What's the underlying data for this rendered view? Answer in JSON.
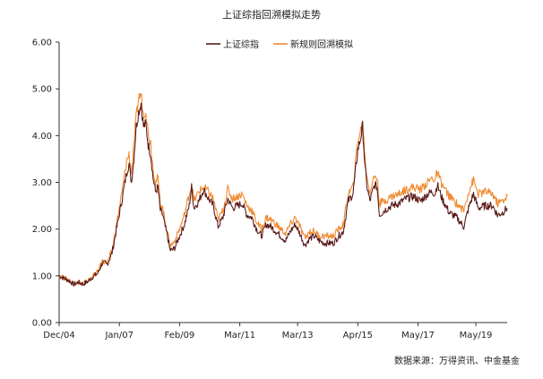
{
  "chart_data": {
    "type": "line",
    "title": "上证综指回溯模拟走势",
    "xlabel": "",
    "ylabel": "",
    "x_tick_labels": [
      "Dec/04",
      "Jan/07",
      "Feb/09",
      "Mar/11",
      "Mar/13",
      "Apr/15",
      "May/17",
      "May/19"
    ],
    "y_tick_labels": [
      "0.00",
      "1.00",
      "2.00",
      "3.00",
      "4.00",
      "5.00",
      "6.00"
    ],
    "ylim": [
      0,
      6
    ],
    "xlim": [
      "2004-12",
      "2020-06"
    ],
    "grid": false,
    "legend_position": "top-center",
    "source": "数据来源：万得资讯、中金基金",
    "series": [
      {
        "name": "上证综指",
        "color": "#5b1a1a",
        "points": [
          [
            "2004-12",
            1.0
          ],
          [
            "2005-02",
            0.95
          ],
          [
            "2005-04",
            0.9
          ],
          [
            "2005-06",
            0.82
          ],
          [
            "2005-08",
            0.86
          ],
          [
            "2005-10",
            0.82
          ],
          [
            "2005-12",
            0.88
          ],
          [
            "2006-02",
            0.98
          ],
          [
            "2006-04",
            1.05
          ],
          [
            "2006-06",
            1.28
          ],
          [
            "2006-08",
            1.25
          ],
          [
            "2006-10",
            1.5
          ],
          [
            "2006-12",
            2.05
          ],
          [
            "2007-02",
            2.6
          ],
          [
            "2007-04",
            3.2
          ],
          [
            "2007-05",
            3.4
          ],
          [
            "2007-06",
            3.0
          ],
          [
            "2007-07",
            3.5
          ],
          [
            "2007-08",
            4.2
          ],
          [
            "2007-09",
            4.5
          ],
          [
            "2007-10",
            4.7
          ],
          [
            "2007-11",
            4.2
          ],
          [
            "2007-12",
            4.25
          ],
          [
            "2008-01",
            3.8
          ],
          [
            "2008-02",
            3.6
          ],
          [
            "2008-03",
            3.1
          ],
          [
            "2008-04",
            2.8
          ],
          [
            "2008-05",
            2.9
          ],
          [
            "2008-06",
            2.4
          ],
          [
            "2008-07",
            2.3
          ],
          [
            "2008-08",
            2.05
          ],
          [
            "2008-09",
            1.85
          ],
          [
            "2008-10",
            1.55
          ],
          [
            "2008-11",
            1.55
          ],
          [
            "2008-12",
            1.6
          ],
          [
            "2009-02",
            1.85
          ],
          [
            "2009-04",
            2.1
          ],
          [
            "2009-06",
            2.5
          ],
          [
            "2009-07",
            2.9
          ],
          [
            "2009-08",
            2.45
          ],
          [
            "2009-10",
            2.6
          ],
          [
            "2009-12",
            2.85
          ],
          [
            "2010-02",
            2.65
          ],
          [
            "2010-04",
            2.5
          ],
          [
            "2010-06",
            2.05
          ],
          [
            "2010-08",
            2.25
          ],
          [
            "2010-10",
            2.65
          ],
          [
            "2010-11",
            2.55
          ],
          [
            "2010-12",
            2.45
          ],
          [
            "2011-02",
            2.5
          ],
          [
            "2011-04",
            2.55
          ],
          [
            "2011-06",
            2.3
          ],
          [
            "2011-08",
            2.25
          ],
          [
            "2011-10",
            2.0
          ],
          [
            "2011-12",
            1.85
          ],
          [
            "2012-02",
            2.1
          ],
          [
            "2012-04",
            2.05
          ],
          [
            "2012-06",
            1.95
          ],
          [
            "2012-08",
            1.85
          ],
          [
            "2012-10",
            1.75
          ],
          [
            "2012-12",
            1.95
          ],
          [
            "2013-02",
            2.1
          ],
          [
            "2013-04",
            1.9
          ],
          [
            "2013-06",
            1.65
          ],
          [
            "2013-08",
            1.8
          ],
          [
            "2013-10",
            1.85
          ],
          [
            "2013-12",
            1.75
          ],
          [
            "2014-02",
            1.7
          ],
          [
            "2014-04",
            1.7
          ],
          [
            "2014-06",
            1.7
          ],
          [
            "2014-08",
            1.85
          ],
          [
            "2014-10",
            1.95
          ],
          [
            "2014-12",
            2.6
          ],
          [
            "2015-02",
            2.75
          ],
          [
            "2015-04",
            3.7
          ],
          [
            "2015-05",
            3.9
          ],
          [
            "2015-06",
            4.2
          ],
          [
            "2015-07",
            3.3
          ],
          [
            "2015-08",
            2.85
          ],
          [
            "2015-09",
            2.6
          ],
          [
            "2015-11",
            2.95
          ],
          [
            "2015-12",
            2.9
          ],
          [
            "2016-01",
            2.3
          ],
          [
            "2016-03",
            2.4
          ],
          [
            "2016-06",
            2.5
          ],
          [
            "2016-09",
            2.55
          ],
          [
            "2016-12",
            2.65
          ],
          [
            "2017-03",
            2.7
          ],
          [
            "2017-06",
            2.6
          ],
          [
            "2017-09",
            2.75
          ],
          [
            "2017-11",
            2.8
          ],
          [
            "2017-12",
            2.75
          ],
          [
            "2018-01",
            2.95
          ],
          [
            "2018-03",
            2.65
          ],
          [
            "2018-06",
            2.35
          ],
          [
            "2018-09",
            2.25
          ],
          [
            "2018-12",
            2.05
          ],
          [
            "2019-02",
            2.45
          ],
          [
            "2019-04",
            2.75
          ],
          [
            "2019-06",
            2.45
          ],
          [
            "2019-09",
            2.5
          ],
          [
            "2019-12",
            2.5
          ],
          [
            "2020-02",
            2.3
          ],
          [
            "2020-04",
            2.35
          ],
          [
            "2020-06",
            2.45
          ]
        ]
      },
      {
        "name": "新规则回溯模拟",
        "color": "#ef8b33",
        "points": [
          [
            "2004-12",
            1.0
          ],
          [
            "2005-02",
            0.96
          ],
          [
            "2005-04",
            0.91
          ],
          [
            "2005-06",
            0.83
          ],
          [
            "2005-08",
            0.87
          ],
          [
            "2005-10",
            0.84
          ],
          [
            "2005-12",
            0.9
          ],
          [
            "2006-02",
            1.0
          ],
          [
            "2006-04",
            1.08
          ],
          [
            "2006-06",
            1.32
          ],
          [
            "2006-08",
            1.28
          ],
          [
            "2006-10",
            1.55
          ],
          [
            "2006-12",
            2.15
          ],
          [
            "2007-02",
            2.75
          ],
          [
            "2007-04",
            3.45
          ],
          [
            "2007-05",
            3.6
          ],
          [
            "2007-06",
            3.2
          ],
          [
            "2007-07",
            3.75
          ],
          [
            "2007-08",
            4.4
          ],
          [
            "2007-09",
            4.8
          ],
          [
            "2007-10",
            4.9
          ],
          [
            "2007-11",
            4.45
          ],
          [
            "2007-12",
            4.55
          ],
          [
            "2008-01",
            4.05
          ],
          [
            "2008-02",
            3.85
          ],
          [
            "2008-03",
            3.3
          ],
          [
            "2008-04",
            3.0
          ],
          [
            "2008-05",
            3.1
          ],
          [
            "2008-06",
            2.55
          ],
          [
            "2008-07",
            2.45
          ],
          [
            "2008-08",
            2.15
          ],
          [
            "2008-09",
            1.95
          ],
          [
            "2008-10",
            1.65
          ],
          [
            "2008-11",
            1.68
          ],
          [
            "2008-12",
            1.75
          ],
          [
            "2009-02",
            2.0
          ],
          [
            "2009-04",
            2.3
          ],
          [
            "2009-06",
            2.75
          ],
          [
            "2009-07",
            2.95
          ],
          [
            "2009-08",
            2.6
          ],
          [
            "2009-10",
            2.8
          ],
          [
            "2009-12",
            2.9
          ],
          [
            "2010-02",
            2.8
          ],
          [
            "2010-04",
            2.65
          ],
          [
            "2010-06",
            2.2
          ],
          [
            "2010-08",
            2.4
          ],
          [
            "2010-10",
            2.85
          ],
          [
            "2010-11",
            2.75
          ],
          [
            "2010-12",
            2.65
          ],
          [
            "2011-02",
            2.7
          ],
          [
            "2011-04",
            2.75
          ],
          [
            "2011-06",
            2.5
          ],
          [
            "2011-08",
            2.4
          ],
          [
            "2011-10",
            2.15
          ],
          [
            "2011-12",
            2.0
          ],
          [
            "2012-02",
            2.25
          ],
          [
            "2012-04",
            2.2
          ],
          [
            "2012-06",
            2.1
          ],
          [
            "2012-08",
            2.0
          ],
          [
            "2012-10",
            1.9
          ],
          [
            "2012-12",
            2.1
          ],
          [
            "2013-02",
            2.25
          ],
          [
            "2013-04",
            2.05
          ],
          [
            "2013-06",
            1.8
          ],
          [
            "2013-08",
            1.95
          ],
          [
            "2013-10",
            1.95
          ],
          [
            "2013-12",
            1.85
          ],
          [
            "2014-02",
            1.85
          ],
          [
            "2014-04",
            1.85
          ],
          [
            "2014-06",
            1.85
          ],
          [
            "2014-08",
            2.0
          ],
          [
            "2014-10",
            2.1
          ],
          [
            "2014-12",
            2.75
          ],
          [
            "2015-02",
            2.9
          ],
          [
            "2015-04",
            3.9
          ],
          [
            "2015-05",
            4.05
          ],
          [
            "2015-06",
            4.3
          ],
          [
            "2015-07",
            3.5
          ],
          [
            "2015-08",
            3.05
          ],
          [
            "2015-09",
            2.8
          ],
          [
            "2015-11",
            3.15
          ],
          [
            "2015-12",
            3.1
          ],
          [
            "2016-01",
            2.55
          ],
          [
            "2016-03",
            2.6
          ],
          [
            "2016-06",
            2.7
          ],
          [
            "2016-09",
            2.75
          ],
          [
            "2016-12",
            2.85
          ],
          [
            "2017-03",
            2.9
          ],
          [
            "2017-06",
            2.85
          ],
          [
            "2017-09",
            3.0
          ],
          [
            "2017-11",
            3.1
          ],
          [
            "2017-12",
            3.05
          ],
          [
            "2018-01",
            3.2
          ],
          [
            "2018-03",
            2.95
          ],
          [
            "2018-06",
            2.7
          ],
          [
            "2018-09",
            2.55
          ],
          [
            "2018-12",
            2.4
          ],
          [
            "2019-02",
            2.8
          ],
          [
            "2019-04",
            3.05
          ],
          [
            "2019-06",
            2.75
          ],
          [
            "2019-09",
            2.8
          ],
          [
            "2019-12",
            2.75
          ],
          [
            "2020-02",
            2.55
          ],
          [
            "2020-04",
            2.6
          ],
          [
            "2020-06",
            2.7
          ]
        ]
      }
    ]
  }
}
